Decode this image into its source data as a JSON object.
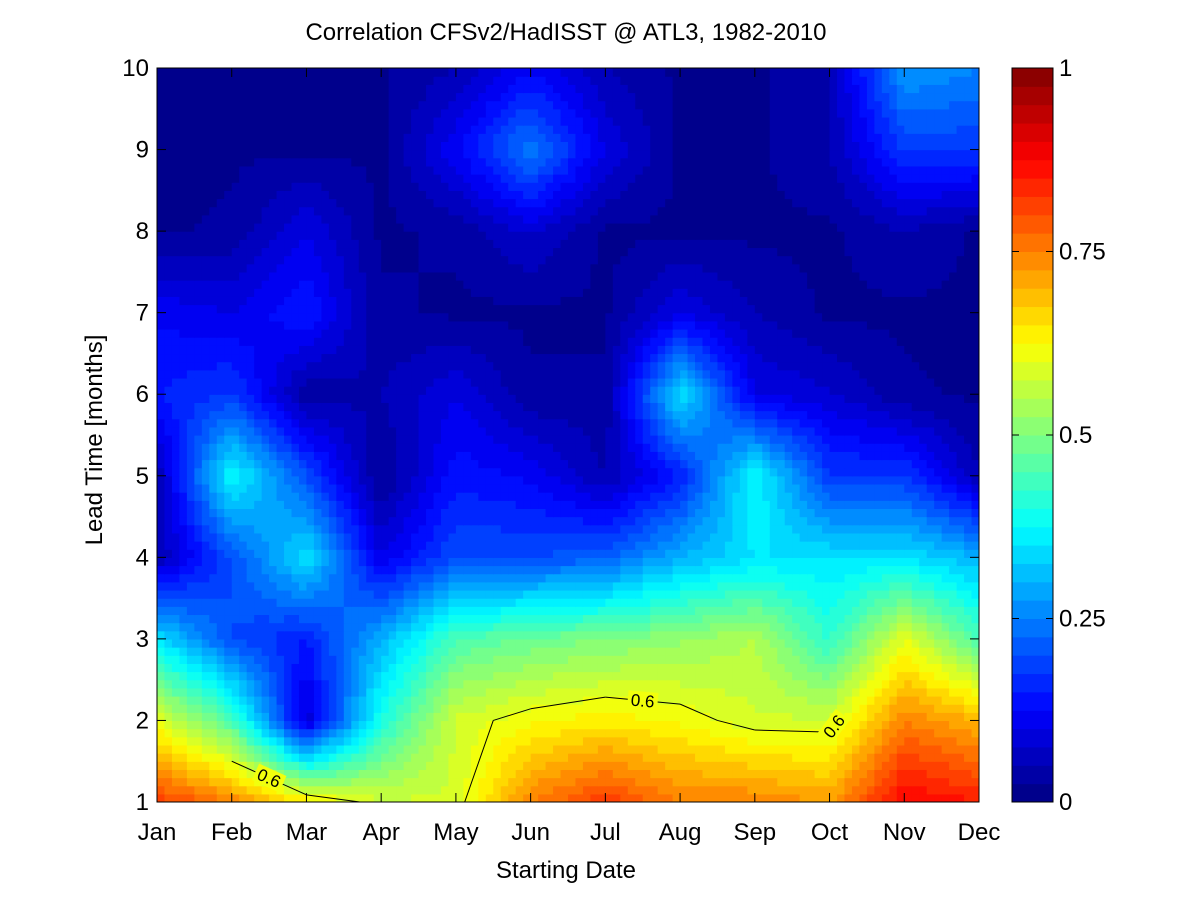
{
  "chart_data": {
    "type": "heatmap",
    "title": "Correlation CFSv2/HadISST @ ATL3, 1982-2010",
    "xlabel": "Starting Date",
    "ylabel": "Lead Time [months]",
    "x_categories": [
      "Jan",
      "Feb",
      "Mar",
      "Apr",
      "May",
      "Jun",
      "Jul",
      "Aug",
      "Sep",
      "Oct",
      "Nov",
      "Dec"
    ],
    "y_values": [
      1,
      2,
      3,
      4,
      5,
      6,
      7,
      8,
      9,
      10
    ],
    "y_tick_labels": [
      "1",
      "2",
      "3",
      "4",
      "5",
      "6",
      "7",
      "8",
      "9",
      "10"
    ],
    "ylim": [
      1,
      10
    ],
    "colormap": "jet",
    "clim": [
      0,
      1
    ],
    "colorbar_ticks": [
      0,
      0.25,
      0.5,
      0.75,
      1
    ],
    "colorbar_tick_labels": [
      "0",
      "0.25",
      "0.5",
      "0.75",
      "1"
    ],
    "contour_level": 0.6,
    "contour_label": "0.6",
    "z_by_lead": [
      [
        0.82,
        0.75,
        0.65,
        0.58,
        0.58,
        0.75,
        0.82,
        0.75,
        0.75,
        0.72,
        0.88,
        0.85
      ],
      [
        0.6,
        0.45,
        0.08,
        0.4,
        0.58,
        0.62,
        0.64,
        0.62,
        0.58,
        0.58,
        0.75,
        0.7
      ],
      [
        0.35,
        0.2,
        0.15,
        0.3,
        0.45,
        0.48,
        0.5,
        0.52,
        0.55,
        0.42,
        0.6,
        0.45
      ],
      [
        0.05,
        0.2,
        0.35,
        0.1,
        0.2,
        0.2,
        0.22,
        0.3,
        0.35,
        0.35,
        0.35,
        0.3
      ],
      [
        0.05,
        0.38,
        0.2,
        0.02,
        0.14,
        0.12,
        0.05,
        0.15,
        0.38,
        0.18,
        0.18,
        0.05
      ],
      [
        0.15,
        0.18,
        0.03,
        0.05,
        0.1,
        0.03,
        0.03,
        0.35,
        0.1,
        0.08,
        0.03,
        0.02
      ],
      [
        0.12,
        0.1,
        0.15,
        0.03,
        0.02,
        0.02,
        0.02,
        0.1,
        0.05,
        0.02,
        0.02,
        0.02
      ],
      [
        0.02,
        0.03,
        0.1,
        0.02,
        0.03,
        0.08,
        0.02,
        0.02,
        0.02,
        0.02,
        0.05,
        0.02
      ],
      [
        0.02,
        0.02,
        0.02,
        0.02,
        0.12,
        0.25,
        0.1,
        0.02,
        0.02,
        0.05,
        0.18,
        0.18
      ],
      [
        0.02,
        0.02,
        0.02,
        0.02,
        0.05,
        0.12,
        0.05,
        0.02,
        0.02,
        0.05,
        0.28,
        0.25
      ]
    ]
  }
}
